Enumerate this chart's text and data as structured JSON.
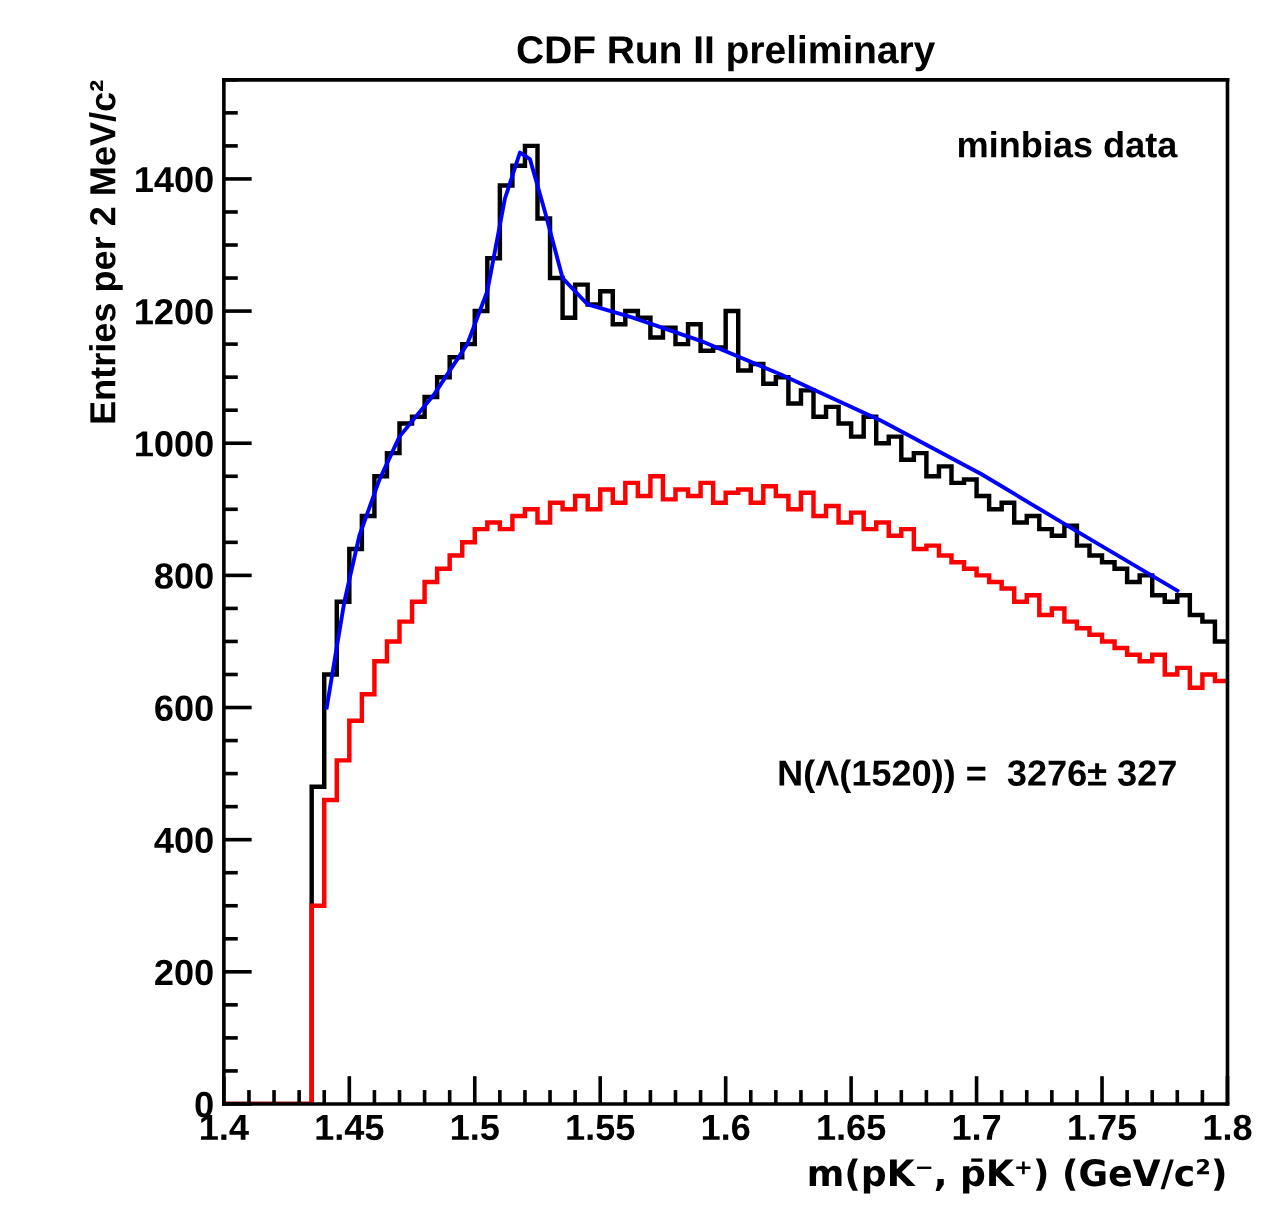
{
  "chart_data": {
    "type": "histogram",
    "title": "CDF Run II preliminary",
    "xlabel": "m(pK⁻, p̄K⁺) (GeV/c²)",
    "ylabel": "Entries per 2 MeV/c²",
    "annotations": [
      "minbias data",
      "N(Λ(1520)) =  3276± 327"
    ],
    "bins": [
      1.4,
      1.405,
      1.41,
      1.415,
      1.42,
      1.425,
      1.43,
      1.435,
      1.44,
      1.445,
      1.45,
      1.455,
      1.46,
      1.465,
      1.47,
      1.475,
      1.48,
      1.485,
      1.49,
      1.495,
      1.5,
      1.505,
      1.51,
      1.515,
      1.52,
      1.525,
      1.53,
      1.535,
      1.54,
      1.545,
      1.55,
      1.555,
      1.56,
      1.565,
      1.57,
      1.575,
      1.58,
      1.585,
      1.59,
      1.595,
      1.6,
      1.605,
      1.61,
      1.615,
      1.62,
      1.625,
      1.63,
      1.635,
      1.64,
      1.645,
      1.65,
      1.655,
      1.66,
      1.665,
      1.67,
      1.675,
      1.68,
      1.685,
      1.69,
      1.695,
      1.7,
      1.705,
      1.71,
      1.715,
      1.72,
      1.725,
      1.73,
      1.735,
      1.74,
      1.745,
      1.75,
      1.755,
      1.76,
      1.765,
      1.77,
      1.775,
      1.78,
      1.785,
      1.79,
      1.795,
      1.8
    ],
    "series": [
      {
        "color": "#000000",
        "values": [
          0,
          0,
          0,
          0,
          0,
          0,
          0,
          480,
          650,
          760,
          840,
          890,
          950,
          985,
          1030,
          1040,
          1070,
          1100,
          1130,
          1150,
          1200,
          1280,
          1390,
          1420,
          1450,
          1340,
          1250,
          1190,
          1240,
          1210,
          1230,
          1180,
          1200,
          1190,
          1160,
          1175,
          1150,
          1180,
          1140,
          1145,
          1200,
          1110,
          1120,
          1090,
          1100,
          1060,
          1080,
          1040,
          1055,
          1030,
          1010,
          1040,
          1000,
          1010,
          975,
          985,
          950,
          965,
          940,
          945,
          920,
          900,
          910,
          880,
          890,
          870,
          860,
          875,
          845,
          830,
          820,
          810,
          790,
          800,
          770,
          760,
          770,
          740,
          730,
          700
        ]
      },
      {
        "color": "#ff0000",
        "values": [
          0,
          0,
          0,
          0,
          0,
          0,
          0,
          300,
          460,
          520,
          580,
          620,
          670,
          700,
          730,
          760,
          790,
          810,
          830,
          850,
          870,
          880,
          870,
          890,
          900,
          880,
          910,
          900,
          920,
          900,
          930,
          910,
          940,
          920,
          950,
          915,
          930,
          920,
          940,
          910,
          925,
          930,
          910,
          935,
          920,
          900,
          925,
          890,
          905,
          880,
          895,
          870,
          880,
          860,
          870,
          840,
          845,
          830,
          820,
          810,
          800,
          790,
          780,
          760,
          770,
          740,
          750,
          730,
          720,
          710,
          700,
          690,
          680,
          670,
          680,
          650,
          660,
          630,
          650,
          640
        ]
      },
      {
        "type": "line",
        "color": "#0000ff",
        "x": [
          1.441,
          1.448,
          1.454,
          1.462,
          1.47,
          1.484,
          1.497,
          1.505,
          1.512,
          1.518,
          1.522,
          1.528,
          1.535,
          1.545,
          1.563,
          1.59,
          1.622,
          1.662,
          1.702,
          1.742,
          1.78
        ],
        "values": [
          600,
          760,
          860,
          945,
          1010,
          1075,
          1150,
          1230,
          1370,
          1440,
          1430,
          1350,
          1250,
          1210,
          1190,
          1155,
          1104,
          1034,
          953,
          862,
          777
        ]
      }
    ],
    "xlim": [
      1.4,
      1.8
    ],
    "ylim": [
      0,
      1550
    ],
    "xticks": [
      1.4,
      1.45,
      1.5,
      1.55,
      1.6,
      1.65,
      1.7,
      1.75,
      1.8
    ],
    "yticks": [
      0,
      200,
      400,
      600,
      800,
      1000,
      1200,
      1400
    ],
    "grid": false,
    "legend": false
  }
}
